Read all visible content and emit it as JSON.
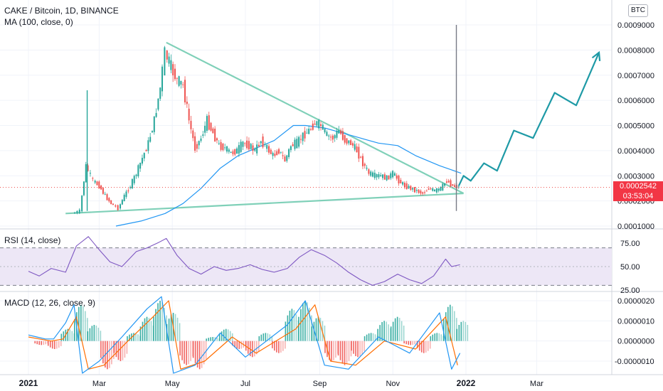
{
  "header": {
    "symbol": "CAKE / Bitcoin, 1D, BINANCE",
    "ma": "MA (100, close, 0)",
    "rsi": "RSI (14, close)",
    "macd": "MACD (12, 26, close, 9)",
    "quote": "BTC"
  },
  "price_tag": {
    "price": "0.0002542",
    "countdown": "03:53:04"
  },
  "colors": {
    "up": "#26a69a",
    "down": "#ef5350",
    "ma": "#2196f3",
    "trend": "#7fd0b8",
    "projection": "#1e9aa6",
    "rsi": "#7e57c2",
    "rsi_band": "#ede7f6",
    "macd": "#2196f3",
    "signal": "#ff6d00",
    "hist_up": "#26a69a",
    "hist_down": "#ef5350"
  },
  "chart_data": [
    {
      "type": "candlestick",
      "title": "CAKE / Bitcoin, 1D, BINANCE",
      "x_tick_labels": [
        "2021",
        "Mar",
        "May",
        "Jul",
        "Sep",
        "Nov",
        "2022",
        "Mar"
      ],
      "y_tick_labels": [
        "0.0009000",
        "0.0008000",
        "0.0007000",
        "0.0006000",
        "0.0005000",
        "0.0004000",
        "0.0003000",
        "0.0002000",
        "0.0001000"
      ],
      "ylim": [
        8e-05,
        0.00095
      ],
      "last_price": 0.0002542,
      "price_path": [
        [
          "2021-02-08",
          0.00015
        ],
        [
          "2021-02-14",
          0.00016
        ],
        [
          "2021-02-19",
          0.00034
        ],
        [
          "2021-02-25",
          0.00028
        ],
        [
          "2021-03-02",
          0.00026
        ],
        [
          "2021-03-07",
          0.00022
        ],
        [
          "2021-03-12",
          0.00019
        ],
        [
          "2021-03-18",
          0.00017
        ],
        [
          "2021-03-23",
          0.00022
        ],
        [
          "2021-03-28",
          0.00026
        ],
        [
          "2021-04-02",
          0.00031
        ],
        [
          "2021-04-07",
          0.00037
        ],
        [
          "2021-04-12",
          0.00043
        ],
        [
          "2021-04-17",
          0.00052
        ],
        [
          "2021-04-22",
          0.00065
        ],
        [
          "2021-04-26",
          0.00079
        ],
        [
          "2021-05-01",
          0.00073
        ],
        [
          "2021-05-06",
          0.00068
        ],
        [
          "2021-05-11",
          0.00066
        ],
        [
          "2021-05-16",
          0.00052
        ],
        [
          "2021-05-21",
          0.00041
        ],
        [
          "2021-05-26",
          0.00045
        ],
        [
          "2021-05-31",
          0.00052
        ],
        [
          "2021-06-05",
          0.00047
        ],
        [
          "2021-06-10",
          0.00042
        ],
        [
          "2021-06-15",
          0.00041
        ],
        [
          "2021-06-20",
          0.00039
        ],
        [
          "2021-06-25",
          0.0004
        ],
        [
          "2021-06-30",
          0.00043
        ],
        [
          "2021-07-05",
          0.00042
        ],
        [
          "2021-07-10",
          0.0004
        ],
        [
          "2021-07-15",
          0.00044
        ],
        [
          "2021-07-20",
          0.00041
        ],
        [
          "2021-07-25",
          0.00038
        ],
        [
          "2021-07-30",
          0.0004
        ],
        [
          "2021-08-04",
          0.00036
        ],
        [
          "2021-08-09",
          0.00042
        ],
        [
          "2021-08-14",
          0.00043
        ],
        [
          "2021-08-19",
          0.00046
        ],
        [
          "2021-08-24",
          0.00048
        ],
        [
          "2021-08-29",
          0.00051
        ],
        [
          "2021-09-03",
          0.0005
        ],
        [
          "2021-09-08",
          0.00046
        ],
        [
          "2021-09-13",
          0.00045
        ],
        [
          "2021-09-18",
          0.00048
        ],
        [
          "2021-09-23",
          0.00044
        ],
        [
          "2021-09-28",
          0.00043
        ],
        [
          "2021-10-03",
          0.0004
        ],
        [
          "2021-10-08",
          0.00035
        ],
        [
          "2021-10-13",
          0.00031
        ],
        [
          "2021-10-18",
          0.0003
        ],
        [
          "2021-10-23",
          0.0003
        ],
        [
          "2021-10-28",
          0.00029
        ],
        [
          "2021-11-02",
          0.00031
        ],
        [
          "2021-11-07",
          0.00028
        ],
        [
          "2021-11-12",
          0.00026
        ],
        [
          "2021-11-17",
          0.00025
        ],
        [
          "2021-11-22",
          0.00024
        ],
        [
          "2021-11-27",
          0.00023
        ],
        [
          "2021-12-02",
          0.00025
        ],
        [
          "2021-12-07",
          0.00024
        ],
        [
          "2021-12-12",
          0.00025
        ],
        [
          "2021-12-17",
          0.00028
        ],
        [
          "2021-12-22",
          0.00026
        ],
        [
          "2021-12-27",
          0.0002542
        ]
      ],
      "ma_100": [
        [
          "2021-03-15",
          0.0001
        ],
        [
          "2021-04-05",
          0.00012
        ],
        [
          "2021-04-25",
          0.00015
        ],
        [
          "2021-05-10",
          0.00019
        ],
        [
          "2021-05-25",
          0.00025
        ],
        [
          "2021-06-10",
          0.00033
        ],
        [
          "2021-06-25",
          0.00038
        ],
        [
          "2021-07-10",
          0.00041
        ],
        [
          "2021-07-25",
          0.00044
        ],
        [
          "2021-08-10",
          0.0005
        ],
        [
          "2021-08-20",
          0.0005
        ],
        [
          "2021-09-05",
          0.00049
        ],
        [
          "2021-09-20",
          0.00047
        ],
        [
          "2021-10-05",
          0.00045
        ],
        [
          "2021-10-20",
          0.00043
        ],
        [
          "2021-11-05",
          0.00042
        ],
        [
          "2021-11-20",
          0.00038
        ],
        [
          "2021-12-10",
          0.00034
        ],
        [
          "2021-12-28",
          0.00031
        ]
      ],
      "resistance_line": [
        [
          "2021-04-26",
          0.00083
        ],
        [
          "2021-12-30",
          0.00023
        ]
      ],
      "support_line": [
        [
          "2021-02-01",
          0.00015
        ],
        [
          "2021-12-30",
          0.00023
        ]
      ],
      "projection": [
        [
          "2021-12-26",
          0.00026
        ],
        [
          "2021-12-30",
          0.0003
        ],
        [
          "2022-01-05",
          0.00028
        ],
        [
          "2022-01-16",
          0.00035
        ],
        [
          "2022-01-27",
          0.00032
        ],
        [
          "2022-02-10",
          0.00048
        ],
        [
          "2022-02-26",
          0.00045
        ],
        [
          "2022-03-16",
          0.00063
        ],
        [
          "2022-04-03",
          0.00058
        ],
        [
          "2022-04-22",
          0.00079
        ]
      ],
      "spikes": [
        [
          "2021-02-19",
          0.00064
        ],
        [
          "2021-12-24",
          0.0009
        ]
      ]
    },
    {
      "type": "line",
      "title": "RSI (14, close)",
      "y_tick_labels": [
        "75.00",
        "50.00",
        "25.00"
      ],
      "ylim": [
        22,
        86
      ],
      "bands": [
        30,
        70
      ],
      "series": [
        {
          "name": "RSI (14, close)",
          "values": [
            [
              "2021-01-01",
              45
            ],
            [
              "2021-01-10",
              40
            ],
            [
              "2021-01-20",
              48
            ],
            [
              "2021-02-01",
              44
            ],
            [
              "2021-02-10",
              72
            ],
            [
              "2021-02-20",
              82
            ],
            [
              "2021-03-01",
              68
            ],
            [
              "2021-03-10",
              55
            ],
            [
              "2021-03-20",
              50
            ],
            [
              "2021-04-01",
              66
            ],
            [
              "2021-04-10",
              70
            ],
            [
              "2021-04-20",
              76
            ],
            [
              "2021-04-26",
              80
            ],
            [
              "2021-05-05",
              62
            ],
            [
              "2021-05-15",
              48
            ],
            [
              "2021-05-25",
              42
            ],
            [
              "2021-06-05",
              50
            ],
            [
              "2021-06-15",
              46
            ],
            [
              "2021-06-25",
              48
            ],
            [
              "2021-07-05",
              52
            ],
            [
              "2021-07-15",
              47
            ],
            [
              "2021-07-25",
              44
            ],
            [
              "2021-08-05",
              48
            ],
            [
              "2021-08-15",
              60
            ],
            [
              "2021-08-25",
              68
            ],
            [
              "2021-09-05",
              62
            ],
            [
              "2021-09-15",
              54
            ],
            [
              "2021-09-25",
              44
            ],
            [
              "2021-10-05",
              36
            ],
            [
              "2021-10-15",
              30
            ],
            [
              "2021-10-25",
              34
            ],
            [
              "2021-11-05",
              42
            ],
            [
              "2021-11-15",
              36
            ],
            [
              "2021-11-25",
              32
            ],
            [
              "2021-12-05",
              40
            ],
            [
              "2021-12-15",
              58
            ],
            [
              "2021-12-20",
              50
            ],
            [
              "2021-12-27",
              52
            ]
          ]
        }
      ]
    },
    {
      "type": "bar",
      "title": "MACD (12, 26, close, 9)",
      "y_tick_labels": [
        "0.0000020",
        "0.0000010",
        "0.0000000",
        "-0.0000010"
      ],
      "ylim": [
        -1.6e-06,
        2.3e-06
      ],
      "histogram": [
        [
          "2021-01-06",
          -2e-07
        ],
        [
          "2021-01-17",
          -4e-07
        ],
        [
          "2021-01-28",
          6e-07
        ],
        [
          "2021-02-08",
          1.8e-06
        ],
        [
          "2021-02-19",
          8e-07
        ],
        [
          "2021-03-02",
          -1.4e-06
        ],
        [
          "2021-03-13",
          -1e-06
        ],
        [
          "2021-03-24",
          4e-07
        ],
        [
          "2021-04-04",
          1.2e-06
        ],
        [
          "2021-04-15",
          2e-06
        ],
        [
          "2021-04-26",
          1.4e-06
        ],
        [
          "2021-05-07",
          -1.2e-06
        ],
        [
          "2021-05-18",
          -1.4e-06
        ],
        [
          "2021-05-29",
          2e-07
        ],
        [
          "2021-06-09",
          6e-07
        ],
        [
          "2021-06-20",
          -4e-07
        ],
        [
          "2021-07-01",
          -8e-07
        ],
        [
          "2021-07-12",
          4e-07
        ],
        [
          "2021-07-23",
          -6e-07
        ],
        [
          "2021-08-03",
          1.6e-06
        ],
        [
          "2021-08-14",
          2e-06
        ],
        [
          "2021-08-25",
          1.2e-06
        ],
        [
          "2021-09-05",
          -1e-06
        ],
        [
          "2021-09-16",
          -1.2e-06
        ],
        [
          "2021-09-27",
          -8e-07
        ],
        [
          "2021-10-08",
          4e-07
        ],
        [
          "2021-10-19",
          1e-06
        ],
        [
          "2021-10-30",
          1.2e-06
        ],
        [
          "2021-11-10",
          -2e-07
        ],
        [
          "2021-11-21",
          -6e-07
        ],
        [
          "2021-12-02",
          4e-07
        ],
        [
          "2021-12-13",
          1.8e-06
        ],
        [
          "2021-12-24",
          1e-06
        ]
      ],
      "series": [
        {
          "name": "MACD",
          "values": [
            [
              "2021-01-01",
              3e-07
            ],
            [
              "2021-01-08",
              2e-07
            ],
            [
              "2021-01-15",
              1e-07
            ],
            [
              "2021-01-22",
              1e-07
            ],
            [
              "2021-02-01",
              9e-07
            ],
            [
              "2021-02-08",
              1.8e-06
            ],
            [
              "2021-02-15",
              -1.6e-06
            ],
            [
              "2021-03-01",
              -1e-06
            ],
            [
              "2021-03-20",
              2e-07
            ],
            [
              "2021-04-10",
              1.6e-06
            ],
            [
              "2021-04-22",
              2.2e-06
            ],
            [
              "2021-05-02",
              -1.6e-06
            ],
            [
              "2021-05-20",
              -1.2e-06
            ],
            [
              "2021-06-10",
              4e-07
            ],
            [
              "2021-07-01",
              -8e-07
            ],
            [
              "2021-08-05",
              8e-07
            ],
            [
              "2021-08-20",
              2e-06
            ],
            [
              "2021-09-05",
              -1.2e-06
            ],
            [
              "2021-09-25",
              -1.4e-06
            ],
            [
              "2021-10-20",
              2e-07
            ],
            [
              "2021-11-15",
              -6e-07
            ],
            [
              "2021-12-10",
              1.4e-06
            ],
            [
              "2021-12-20",
              -1.4e-06
            ],
            [
              "2021-12-27",
              -6e-07
            ]
          ]
        },
        {
          "name": "Signal",
          "values": [
            [
              "2021-01-01",
              2e-07
            ],
            [
              "2021-01-10",
              1e-07
            ],
            [
              "2021-01-20",
              0.0
            ],
            [
              "2021-01-30",
              1e-07
            ],
            [
              "2021-02-10",
              1.2e-06
            ],
            [
              "2021-02-20",
              -1.4e-06
            ],
            [
              "2021-03-05",
              -1.2e-06
            ],
            [
              "2021-03-25",
              0.0
            ],
            [
              "2021-04-15",
              1.2e-06
            ],
            [
              "2021-04-28",
              2e-06
            ],
            [
              "2021-05-08",
              -1.4e-06
            ],
            [
              "2021-05-28",
              -1e-06
            ],
            [
              "2021-06-20",
              2e-07
            ],
            [
              "2021-07-10",
              -6e-07
            ],
            [
              "2021-08-12",
              6e-07
            ],
            [
              "2021-08-28",
              1.8e-06
            ],
            [
              "2021-09-10",
              -1e-06
            ],
            [
              "2021-10-01",
              -1.2e-06
            ],
            [
              "2021-10-25",
              0.0
            ],
            [
              "2021-11-20",
              -4e-07
            ],
            [
              "2021-12-15",
              1.2e-06
            ],
            [
              "2021-12-25",
              -1.2e-06
            ]
          ]
        }
      ]
    }
  ]
}
